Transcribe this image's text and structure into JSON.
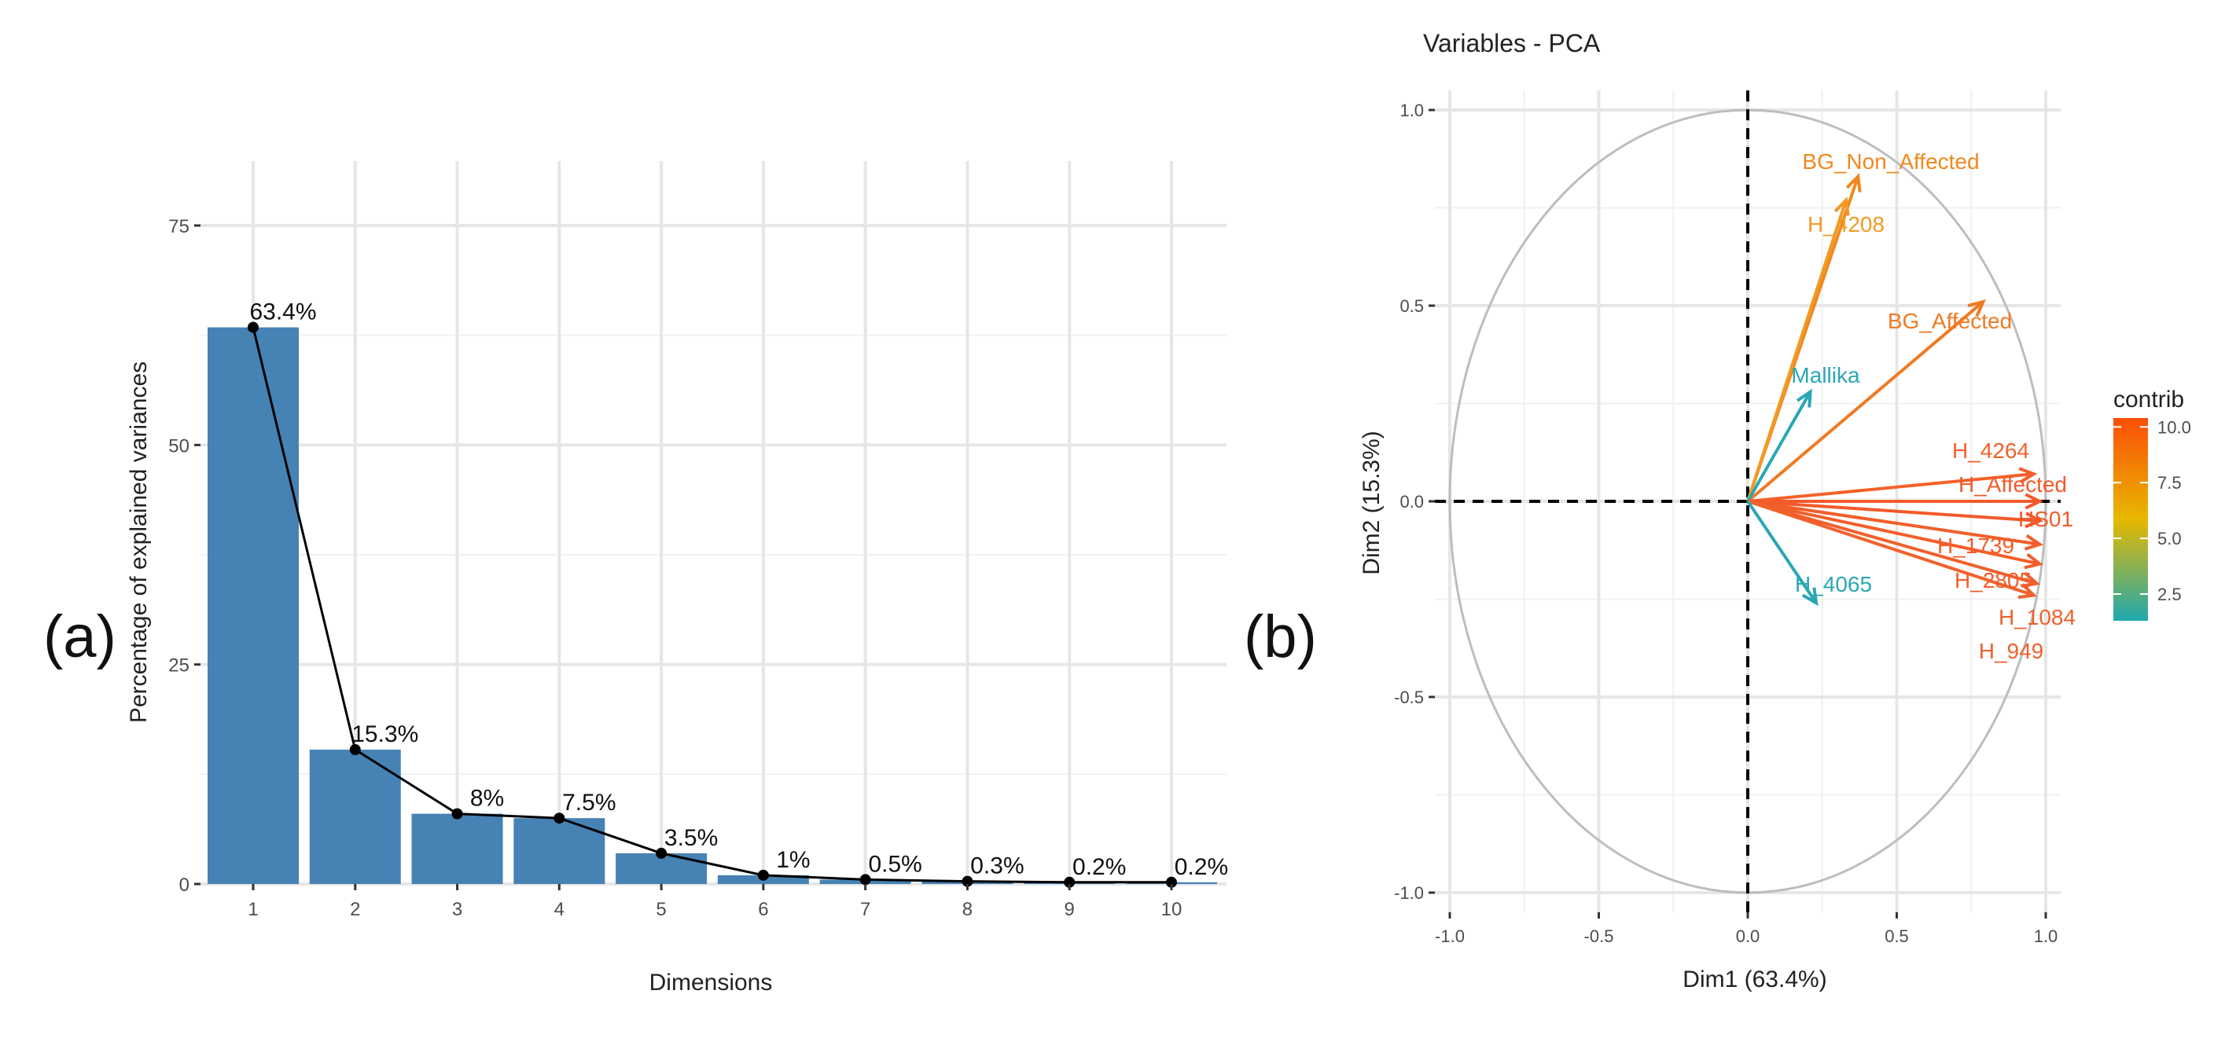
{
  "panel_labels": [
    "(a)",
    "(b)"
  ],
  "chart_data": [
    {
      "type": "bar",
      "panel": "(a)",
      "title": "",
      "xlabel": "Dimensions",
      "ylabel": "Percentage of explained variances",
      "categories": [
        "1",
        "2",
        "3",
        "4",
        "5",
        "6",
        "7",
        "8",
        "9",
        "10"
      ],
      "values": [
        63.4,
        15.3,
        8,
        7.5,
        3.5,
        1,
        0.5,
        0.3,
        0.2,
        0.2
      ],
      "data_labels": [
        "63.4%",
        "15.3%",
        "8%",
        "7.5%",
        "3.5%",
        "1%",
        "0.5%",
        "0.3%",
        "0.2%",
        "0.2%"
      ],
      "line_overlay": true,
      "ylim": [
        0,
        80
      ],
      "yticks": [
        0,
        25,
        50,
        75
      ],
      "grid": true,
      "colors": {
        "bar": "#4682B4",
        "line": "#000000"
      }
    },
    {
      "type": "scatter",
      "subtype": "pca-variable-correlation-circle",
      "panel": "(b)",
      "title": "Variables - PCA",
      "xlabel": "Dim1 (63.4%)",
      "ylabel": "Dim2 (15.3%)",
      "xlim": [
        -1.05,
        1.05
      ],
      "ylim": [
        -1.05,
        1.05
      ],
      "xticks": [
        -1.0,
        -0.5,
        0.0,
        0.5,
        1.0
      ],
      "xtick_labels": [
        "-1.0",
        "-0.5",
        "0.0",
        "0.5",
        "1.0"
      ],
      "yticks": [
        -1.0,
        -0.5,
        0.0,
        0.5,
        1.0
      ],
      "ytick_labels": [
        "-1.0",
        "-0.5",
        "0.0",
        "0.5",
        "1.0"
      ],
      "grid": true,
      "circle_radius": 1.0,
      "legend": {
        "title": "contrib",
        "position": "right",
        "ticks": [
          2.5,
          5.0,
          7.5,
          10.0
        ],
        "tick_labels": [
          "2.5",
          "5.0",
          "7.5",
          "10.0"
        ],
        "range": [
          1.3,
          10.4
        ],
        "colors": [
          "#1FA9B0",
          "#E7B800",
          "#FC4E07"
        ]
      },
      "variables": [
        {
          "name": "BG_Non_Affected",
          "x": 0.37,
          "y": 0.83,
          "contrib": 9.3,
          "color": "#F0881E"
        },
        {
          "name": "H_4208",
          "x": 0.33,
          "y": 0.77,
          "contrib": 8.7,
          "color": "#F09A24"
        },
        {
          "name": "BG_Affected",
          "x": 0.79,
          "y": 0.51,
          "contrib": 9.6,
          "color": "#F07A22"
        },
        {
          "name": "Mallika",
          "x": 0.21,
          "y": 0.28,
          "contrib": 1.8,
          "color": "#2AA7B4"
        },
        {
          "name": "H_4264",
          "x": 0.96,
          "y": 0.07,
          "contrib": 10.0,
          "color": "#F5602A"
        },
        {
          "name": "H_Affected",
          "x": 0.98,
          "y": 0.0,
          "contrib": 10.2,
          "color": "#F25A2A"
        },
        {
          "name": "HS01",
          "x": 0.98,
          "y": -0.05,
          "contrib": 10.3,
          "color": "#F25A2A"
        },
        {
          "name": "H_1739",
          "x": 0.98,
          "y": -0.11,
          "contrib": 10.1,
          "color": "#F25E2A"
        },
        {
          "name": "H_2805",
          "x": 0.98,
          "y": -0.16,
          "contrib": 10.0,
          "color": "#F25E2A"
        },
        {
          "name": "H_1084",
          "x": 0.97,
          "y": -0.21,
          "contrib": 9.9,
          "color": "#F0602C"
        },
        {
          "name": "H_949",
          "x": 0.96,
          "y": -0.24,
          "contrib": 9.8,
          "color": "#F0622C"
        },
        {
          "name": "H_4065",
          "x": 0.23,
          "y": -0.26,
          "contrib": 1.9,
          "color": "#2AA7B4"
        }
      ]
    }
  ]
}
